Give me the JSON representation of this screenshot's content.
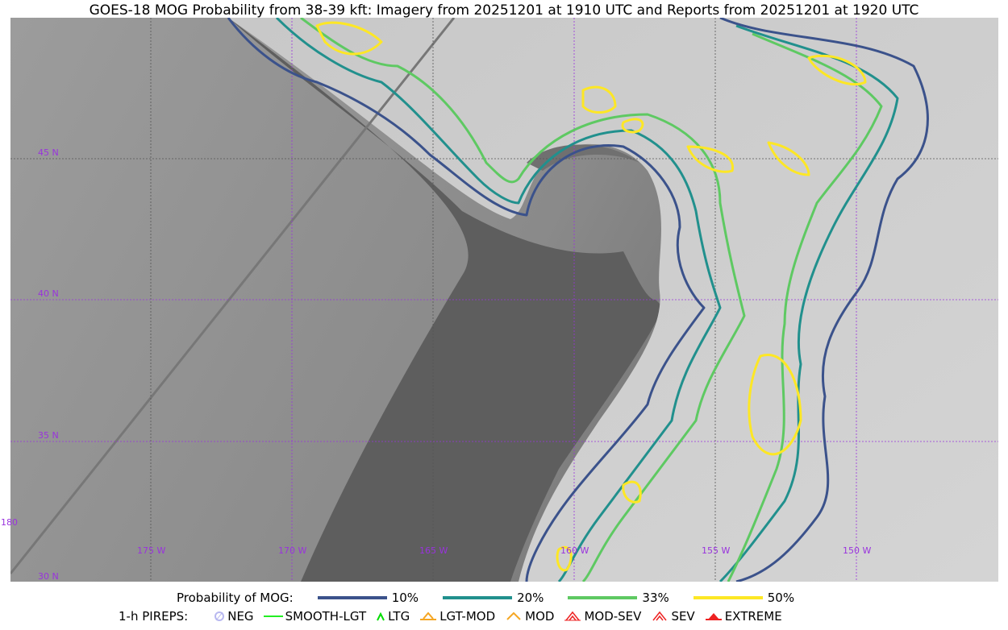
{
  "title": "GOES-18 MOG Probability from 38-39 kft: Imagery from 20251201 at 1910 UTC and Reports from 20251201 at 1920 UTC",
  "map": {
    "lon_labels": [
      "175 W",
      "170 W",
      "165 W",
      "160 W",
      "155 W",
      "150 W"
    ],
    "lat_labels": [
      "45 N",
      "40 N",
      "35 N",
      "30 N"
    ],
    "dateline_label": "180",
    "grid_color": "#9933dd"
  },
  "legend": {
    "prob_title": "Probability of MOG:",
    "prob_levels": [
      {
        "label": "10%",
        "color": "#3b528b"
      },
      {
        "label": "20%",
        "color": "#21908d"
      },
      {
        "label": "33%",
        "color": "#5ec962"
      },
      {
        "label": "50%",
        "color": "#fde725"
      }
    ],
    "pirep_title": "1-h PIREPS:",
    "pireps": [
      {
        "label": "NEG",
        "color": "#b8b8f0",
        "icon": "neg-icon"
      },
      {
        "label": "SMOOTH-LGT",
        "color": "#22ee22",
        "icon": "smooth-lgt-icon"
      },
      {
        "label": "LTG",
        "color": "#00dd00",
        "icon": "ltg-icon"
      },
      {
        "label": "LGT-MOD",
        "color": "#f5a623",
        "icon": "lgt-mod-icon"
      },
      {
        "label": "MOD",
        "color": "#f5a623",
        "icon": "mod-icon"
      },
      {
        "label": "MOD-SEV",
        "color": "#ee2222",
        "icon": "mod-sev-icon"
      },
      {
        "label": "SEV",
        "color": "#ee2222",
        "icon": "sev-icon"
      },
      {
        "label": "EXTREME",
        "color": "#ee2222",
        "icon": "extreme-icon"
      }
    ]
  }
}
